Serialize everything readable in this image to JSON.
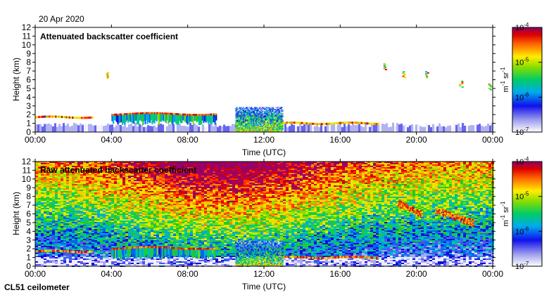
{
  "date_label": "20 Apr 2020",
  "instrument_label": "CL51 ceilometer",
  "colorbar": {
    "unit_base": "m",
    "unit_exp1": "-1",
    "unit_mid": " sr",
    "unit_exp2": "-1",
    "ticks": [
      {
        "base": "10",
        "exp": "-4",
        "value": 0.0001
      },
      {
        "base": "10",
        "exp": "-5",
        "value": 1e-05
      },
      {
        "base": "10",
        "exp": "-6",
        "value": 1e-06
      },
      {
        "base": "10",
        "exp": "-7",
        "value": 1e-07
      }
    ]
  },
  "chart_data": [
    {
      "type": "heatmap",
      "title": "Attenuated backscatter coefficient",
      "xlabel": "Time (UTC)",
      "ylabel": "Height (km)",
      "x_ticks": [
        "00:00",
        "04:00",
        "08:00",
        "12:00",
        "16:00",
        "20:00",
        "00:00"
      ],
      "y_ticks": [
        0,
        1,
        2,
        3,
        4,
        5,
        6,
        7,
        8,
        9,
        10,
        11,
        12
      ],
      "xlim_hours": [
        0,
        24
      ],
      "ylim": [
        0,
        12
      ],
      "color_scale": "log",
      "clim": [
        1e-07,
        0.0001
      ],
      "features": [
        {
          "kind": "surface layer",
          "t_start_h": 0,
          "t_end_h": 24,
          "h_bottom_km": 0,
          "h_top_km": 0.9
        },
        {
          "kind": "cloud base line",
          "t_start_h": 0,
          "t_end_h": 3,
          "h_km": 1.7
        },
        {
          "kind": "cloud layer",
          "t_start_h": 4,
          "t_end_h": 9.5,
          "h_bottom_km": 0.8,
          "h_top_km": 2.1
        },
        {
          "kind": "high signal region",
          "t_start_h": 10.5,
          "t_end_h": 13,
          "h_bottom_km": 0,
          "h_top_km": 2.8
        },
        {
          "kind": "cloud base line",
          "t_start_h": 13,
          "t_end_h": 18,
          "h_km": 1.0
        },
        {
          "kind": "isolated cloud",
          "t_h": 3.7,
          "h_km": 6.5
        },
        {
          "kind": "isolated cloud",
          "t_h": 18.3,
          "h_km": 7.5
        },
        {
          "kind": "isolated cloud",
          "t_h": 19.3,
          "h_km": 6.6
        },
        {
          "kind": "isolated cloud",
          "t_h": 20.5,
          "h_km": 6.6
        },
        {
          "kind": "isolated cloud",
          "t_h": 22.3,
          "h_km": 5.5
        },
        {
          "kind": "isolated cloud",
          "t_h": 23.8,
          "h_km": 5.2
        }
      ]
    },
    {
      "type": "heatmap",
      "title": "Raw attenuated backscatter coefficient",
      "xlabel": "Time (UTC)",
      "ylabel": "Height (km)",
      "x_ticks": [
        "00:00",
        "04:00",
        "08:00",
        "12:00",
        "16:00",
        "20:00",
        "00:00"
      ],
      "y_ticks": [
        0,
        1,
        2,
        3,
        4,
        5,
        6,
        7,
        8,
        9,
        10,
        11,
        12
      ],
      "xlim_hours": [
        0,
        24
      ],
      "ylim": [
        0,
        12
      ],
      "color_scale": "log",
      "clim": [
        1e-07,
        0.0001
      ],
      "features": [
        {
          "kind": "noisy background",
          "t_start_h": 0,
          "t_end_h": 24,
          "h_bottom_km": 0,
          "h_top_km": 12
        },
        {
          "kind": "cloud base line",
          "t_start_h": 0,
          "t_end_h": 3,
          "h_km": 1.7
        },
        {
          "kind": "cloud layer",
          "t_start_h": 4,
          "t_end_h": 9.5,
          "h_bottom_km": 0.8,
          "h_top_km": 2.1
        },
        {
          "kind": "high signal region",
          "t_start_h": 10.5,
          "t_end_h": 13,
          "h_bottom_km": 0,
          "h_top_km": 2.8
        },
        {
          "kind": "cloud base line",
          "t_start_h": 13,
          "t_end_h": 18,
          "h_km": 1.0
        },
        {
          "kind": "elevated aerosol",
          "t_start_h": 19,
          "t_end_h": 20.3,
          "h_bottom_km": 6,
          "h_top_km": 7.3
        },
        {
          "kind": "elevated aerosol",
          "t_start_h": 21,
          "t_end_h": 23,
          "h_bottom_km": 5,
          "h_top_km": 6.5
        }
      ]
    }
  ]
}
